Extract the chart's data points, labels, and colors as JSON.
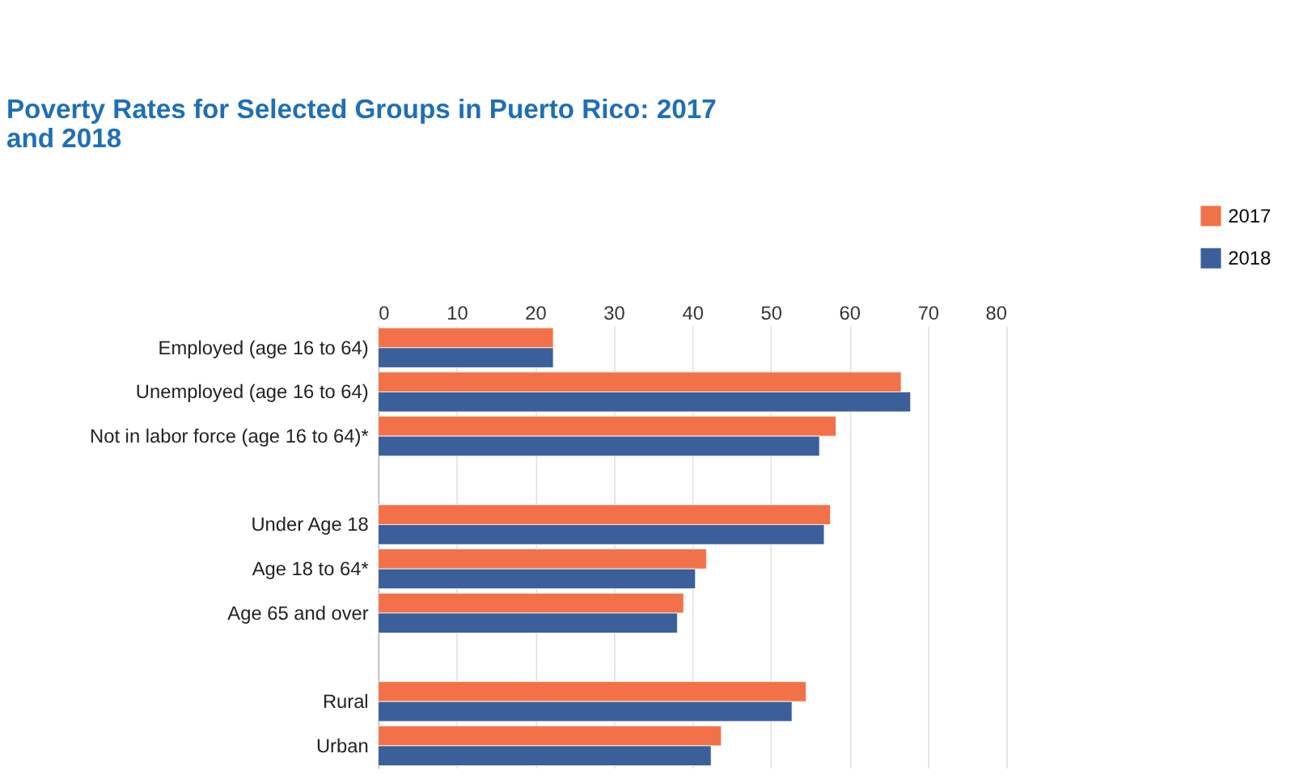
{
  "chart_data": {
    "type": "bar",
    "orientation": "horizontal",
    "title": [
      "Poverty Rates for Selected Groups in Puerto Rico: 2017",
      "and 2018"
    ],
    "categories": [
      "Employed (age 16 to 64)",
      "Unemployed (age 16 to 64)",
      "Not in labor force (age 16 to 64)*",
      null,
      "Under Age 18",
      "Age 18 to 64*",
      "Age 65 and over",
      null,
      "Rural",
      "Urban"
    ],
    "series": [
      {
        "name": "2017",
        "color": "#f37148",
        "values": [
          22.3,
          66.6,
          58.3,
          null,
          57.6,
          41.8,
          38.9,
          null,
          54.5,
          43.7
        ]
      },
      {
        "name": "2018",
        "color": "#3a5f9a",
        "values": [
          22.3,
          67.8,
          56.2,
          null,
          56.8,
          40.4,
          38.1,
          null,
          52.7,
          42.4
        ]
      }
    ],
    "xlim": [
      0,
      80
    ],
    "xticks": [
      0,
      10,
      20,
      30,
      40,
      50,
      60,
      70,
      80
    ],
    "grid": "x",
    "legend": "top right"
  }
}
